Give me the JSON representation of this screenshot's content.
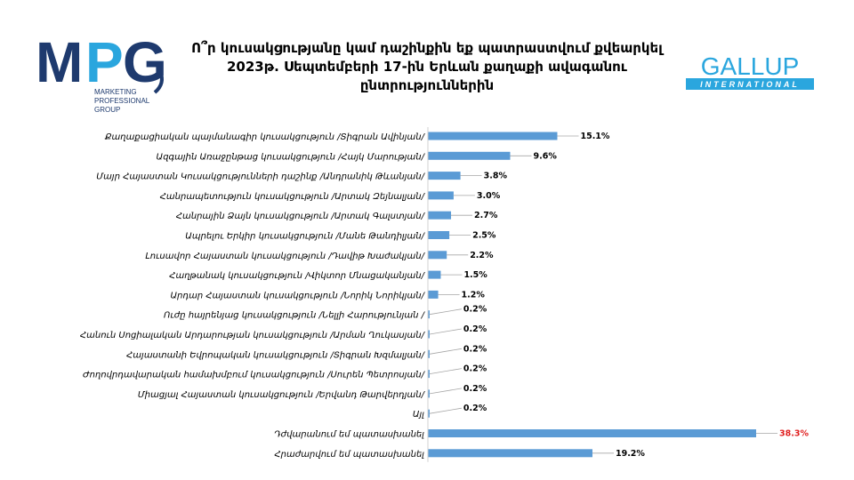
{
  "logos": {
    "mpg": {
      "letters": "MPG",
      "line1": "MARKETING",
      "line2": "PROFESSIONAL",
      "line3": "GROUP",
      "color_dark": "#1e3a6e",
      "color_light": "#2aa6de"
    },
    "gallup": {
      "name": "GALLUP",
      "sub": "INTERNATIONAL",
      "color": "#2aa6de"
    }
  },
  "chart_data": {
    "type": "bar",
    "orientation": "horizontal",
    "title": "Ո՞ր կուսակցությանը կամ դաշինքին եք պատրաստվում քվեարկել 2023թ. Սեպտեմբերի 17-ին Երևան քաղաքի ավագանու ընտրություններին",
    "categories": [
      "Քաղաքացիական պայմանագիր կուսակցություն /Տիգրան Ավինյան/",
      "Ազգային Առաջընթաց կուսակցություն /Հայկ Մարության/",
      "Մայր Հայաստան Կուսակցությունների դաշինք /Անդրանիկ Թևանյան/",
      "Հանրապետություն կուսակցություն /Արտակ Զեյնալյան/",
      "Հանրային Ձայն կուսակցություն /Արտակ Գալստյան/",
      "Ապրելու Երկիր կուսակցություն /Մանե Թանդիլյան/",
      "Լուսավոր Հայաստան կուսակցություն /Դավիթ Խաժակյան/",
      "Հաղթանակ կուսակցություն /Վիկտոր Մնացականյան/",
      "Արդար Հայաստան կուսակցություն /Նորիկ Նորիկյան/",
      "Ուժը հայրենյաց կուսակցություն /Նելլի Հարությունյան /",
      "Հանուն Սոցիալական Արդարության կուսակցություն /Արման Ղուկասյան/",
      "Հայաստանի Եվրոպական կուսակցություն /Տիգրան Խզմալյան/",
      "Ժողովրդավարական համախմբում կուսակցություն /Սուրեն Պետրոսյան/",
      "Միացյալ Հայաստան կուսակցություն /Երվանդ Թարվերդյան/",
      "Այլ",
      "Դժվարանում եմ պատասխանել",
      "Հրաժարվում եմ պատասխանել"
    ],
    "values": [
      15.1,
      9.6,
      3.8,
      3.0,
      2.7,
      2.5,
      2.2,
      1.5,
      1.2,
      0.2,
      0.2,
      0.2,
      0.2,
      0.2,
      0.2,
      38.3,
      19.2
    ],
    "value_labels": [
      "15.1%",
      "9.6%",
      "3.8%",
      "3.0%",
      "2.7%",
      "2.5%",
      "2.2%",
      "1.5%",
      "1.2%",
      "0.2%",
      "0.2%",
      "0.2%",
      "0.2%",
      "0.2%",
      "0.2%",
      "38.3%",
      "19.2%"
    ],
    "unit": "%",
    "xlim": [
      0,
      38.3
    ],
    "grid": false,
    "legend": "none",
    "bar_color": "#5b9bd5",
    "label_color": "#000000",
    "highlight_label_color": "#e02020",
    "highlight_index": 15
  }
}
